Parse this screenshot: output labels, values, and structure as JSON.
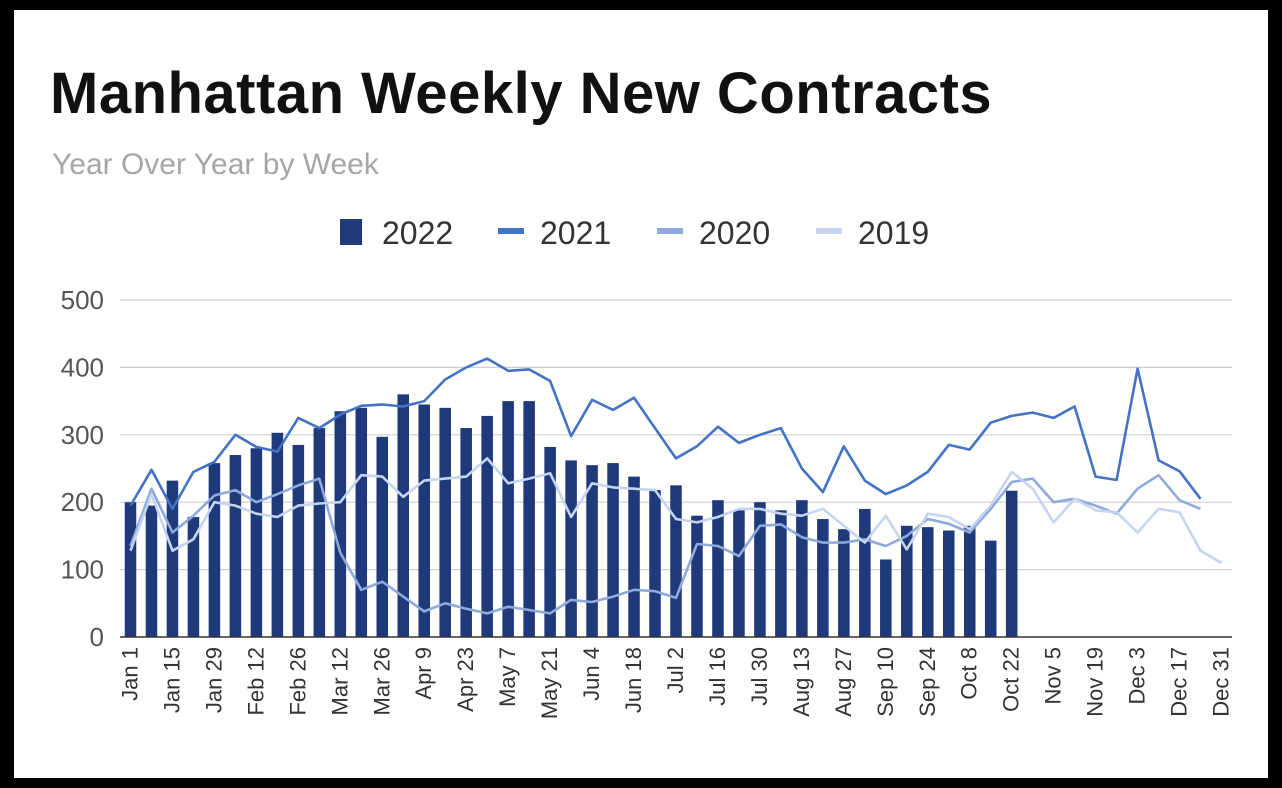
{
  "chart_data": {
    "type": "bar",
    "title": "Manhattan Weekly New Contracts",
    "subtitle": "Year Over Year by Week",
    "xlabel": "",
    "ylabel": "",
    "ylim": [
      0,
      500
    ],
    "yticks": [
      0,
      100,
      200,
      300,
      400,
      500
    ],
    "grid": true,
    "legend_position": "top-center",
    "categories": [
      "Jan 1",
      "Jan 8",
      "Jan 15",
      "Jan 22",
      "Jan 29",
      "Feb 5",
      "Feb 12",
      "Feb 19",
      "Feb 26",
      "Mar 5",
      "Mar 12",
      "Mar 19",
      "Mar 26",
      "Apr 2",
      "Apr 9",
      "Apr 16",
      "Apr 23",
      "Apr 30",
      "May 7",
      "May 14",
      "May 21",
      "May 28",
      "Jun 4",
      "Jun 11",
      "Jun 18",
      "Jun 25",
      "Jul 2",
      "Jul 9",
      "Jul 16",
      "Jul 23",
      "Jul 30",
      "Aug 6",
      "Aug 13",
      "Aug 20",
      "Aug 27",
      "Sep 3",
      "Sep 10",
      "Sep 17",
      "Sep 24",
      "Oct 1",
      "Oct 8",
      "Oct 15",
      "Oct 22",
      "Oct 29",
      "Nov 5",
      "Nov 12",
      "Nov 19",
      "Nov 26",
      "Dec 3",
      "Dec 10",
      "Dec 17",
      "Dec 24",
      "Dec 31"
    ],
    "tick_labels": [
      "Jan 1",
      "Jan 15",
      "Jan 29",
      "Feb 12",
      "Feb 26",
      "Mar 12",
      "Mar 26",
      "Apr 9",
      "Apr 23",
      "May 7",
      "May 21",
      "Jun 4",
      "Jun 18",
      "Jul 2",
      "Jul 16",
      "Jul 30",
      "Aug 13",
      "Aug 27",
      "Sep 10",
      "Sep 24",
      "Oct 8",
      "Oct 22",
      "Nov 5",
      "Nov 19",
      "Dec 3",
      "Dec 17",
      "Dec 31"
    ],
    "series": [
      {
        "name": "2022",
        "kind": "bar",
        "color": "#1f3a7a",
        "values": [
          200,
          195,
          232,
          178,
          258,
          270,
          280,
          303,
          285,
          310,
          335,
          340,
          297,
          360,
          345,
          340,
          310,
          328,
          350,
          350,
          282,
          262,
          255,
          258,
          238,
          218,
          225,
          180,
          203,
          188,
          200,
          188,
          203,
          175,
          160,
          190,
          115,
          165,
          163,
          158,
          165,
          143,
          217,
          null,
          null,
          null,
          null,
          null,
          null,
          null,
          null,
          null,
          null
        ]
      },
      {
        "name": "2021",
        "kind": "line",
        "color": "#4472c4",
        "values": [
          195,
          248,
          190,
          245,
          260,
          300,
          282,
          275,
          325,
          310,
          330,
          343,
          345,
          342,
          350,
          382,
          400,
          413,
          395,
          397,
          380,
          298,
          352,
          337,
          355,
          310,
          265,
          283,
          312,
          288,
          300,
          310,
          250,
          215,
          283,
          232,
          212,
          225,
          245,
          285,
          278,
          318,
          328,
          333,
          325,
          342,
          238,
          233,
          398,
          262,
          246,
          205,
          null
        ]
      },
      {
        "name": "2020",
        "kind": "line",
        "color": "#8ea9db",
        "values": [
          135,
          220,
          155,
          180,
          210,
          218,
          200,
          212,
          225,
          235,
          125,
          70,
          82,
          60,
          38,
          50,
          42,
          35,
          45,
          40,
          35,
          55,
          52,
          60,
          70,
          68,
          58,
          138,
          135,
          120,
          165,
          167,
          148,
          140,
          140,
          145,
          135,
          150,
          175,
          168,
          155,
          190,
          230,
          235,
          200,
          205,
          195,
          183,
          220,
          240,
          203,
          190,
          null
        ]
      },
      {
        "name": "2019",
        "kind": "line",
        "color": "#c5d5ef",
        "values": [
          128,
          212,
          128,
          145,
          200,
          195,
          183,
          178,
          195,
          198,
          200,
          240,
          238,
          208,
          232,
          235,
          238,
          265,
          228,
          235,
          243,
          178,
          228,
          222,
          220,
          218,
          175,
          170,
          178,
          190,
          190,
          183,
          180,
          190,
          165,
          140,
          180,
          130,
          183,
          178,
          160,
          195,
          245,
          220,
          170,
          205,
          188,
          185,
          155,
          190,
          185,
          128,
          110
        ]
      }
    ]
  }
}
